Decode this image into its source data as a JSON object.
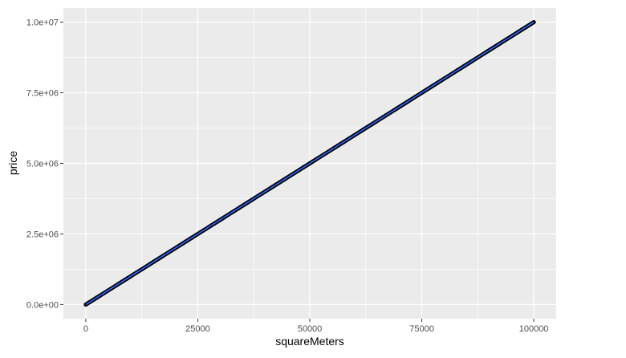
{
  "chart_data": {
    "type": "scatter",
    "title": "",
    "xlabel": "squareMeters",
    "ylabel": "price",
    "xlim": [
      -5000,
      105000
    ],
    "ylim": [
      -500000,
      10500000
    ],
    "x_ticks": [
      0,
      25000,
      50000,
      75000,
      100000
    ],
    "x_tick_labels": [
      "0",
      "25000",
      "50000",
      "75000",
      "100000"
    ],
    "y_ticks": [
      0,
      2500000,
      5000000,
      7500000,
      10000000
    ],
    "y_tick_labels": [
      "0.0e+00",
      "2.5e+06",
      "5.0e+06",
      "7.5e+06",
      "1.0e+07"
    ],
    "grid": true,
    "series": [
      {
        "x": [
          0,
          5000,
          10000,
          15000,
          20000,
          25000,
          30000,
          35000,
          40000,
          45000,
          50000,
          55000,
          60000,
          65000,
          70000,
          75000,
          80000,
          85000,
          90000,
          95000,
          100000
        ],
        "y": [
          0,
          500000,
          1000000,
          1500000,
          2000000,
          2500000,
          3000000,
          3500000,
          4000000,
          4500000,
          5000000,
          5500000,
          6000000,
          6500000,
          7000000,
          7500000,
          8000000,
          8500000,
          9000000,
          9500000,
          10000000
        ],
        "point_color": "#000000"
      }
    ],
    "fit_line": {
      "x": [
        0,
        100000
      ],
      "y": [
        0,
        10000000
      ],
      "color": "#3366FF"
    },
    "colors": {
      "panel_background": "#EBEBEB",
      "grid_major": "#FFFFFF",
      "points": "#000000",
      "fit_line": "#3366FF"
    }
  }
}
